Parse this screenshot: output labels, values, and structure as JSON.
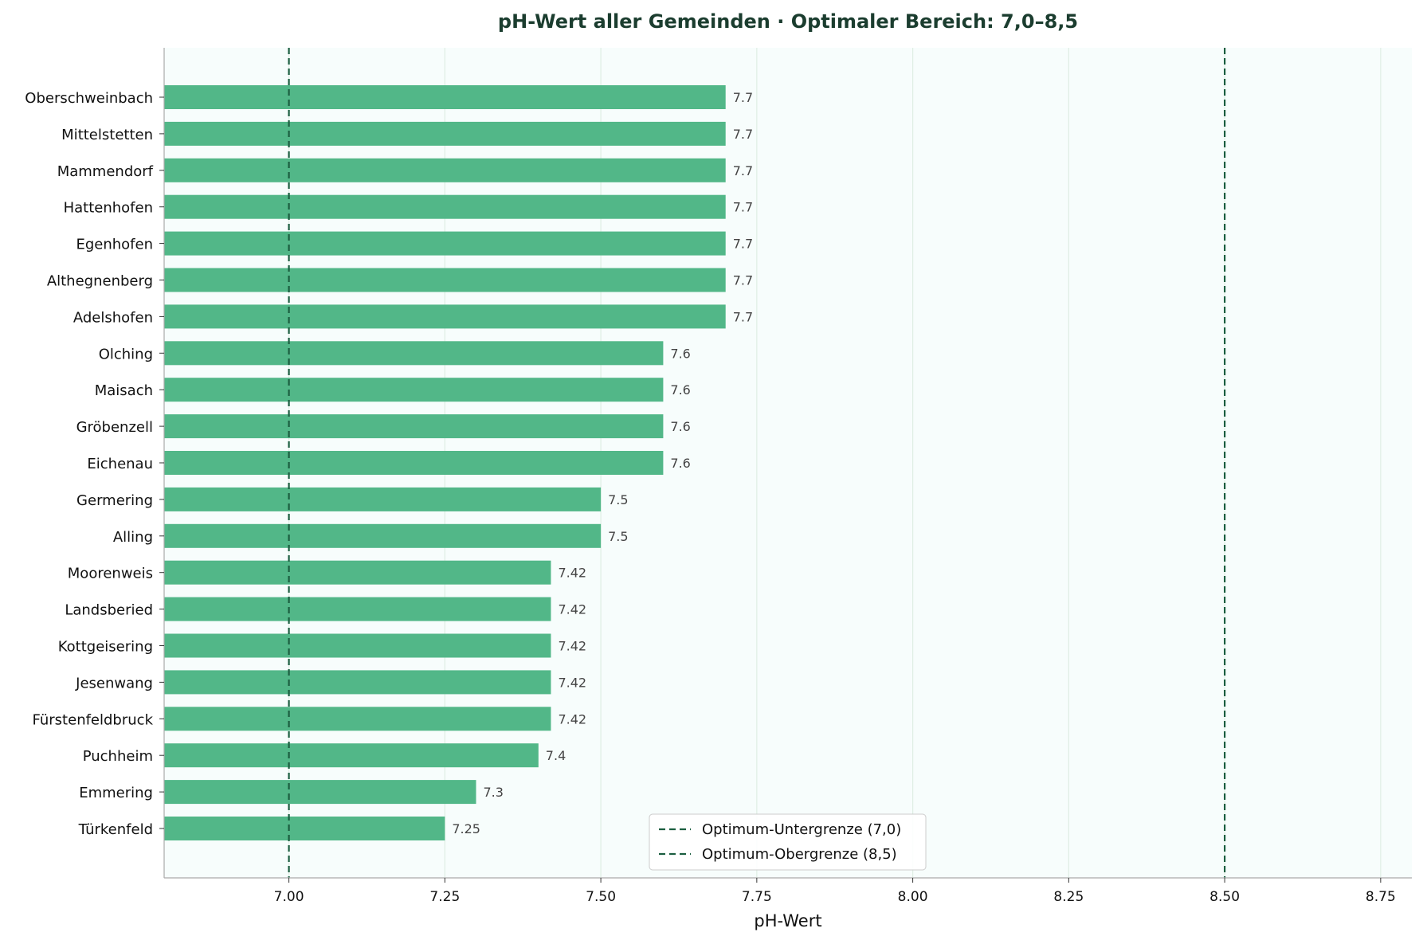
{
  "chart_data": {
    "type": "bar",
    "orientation": "horizontal",
    "title": "pH-Wert aller Gemeinden · Optimaler Bereich: 7,0–8,5",
    "xlabel": "pH-Wert",
    "ylabel": "",
    "xlim": [
      6.8,
      8.8
    ],
    "xticks": [
      "7.00",
      "7.25",
      "7.50",
      "7.75",
      "8.00",
      "8.25",
      "8.50",
      "8.75"
    ],
    "grid": "vertical",
    "bar_color": "#52b788",
    "plot_background": "#f7fdfc",
    "reference_line_color": "#1b5e40",
    "categories": [
      "Oberschweinbach",
      "Mittelstetten",
      "Mammendorf",
      "Hattenhofen",
      "Egenhofen",
      "Althegnenberg",
      "Adelshofen",
      "Olching",
      "Maisach",
      "Gröbenzell",
      "Eichenau",
      "Germering",
      "Alling",
      "Moorenweis",
      "Landsberied",
      "Kottgeisering",
      "Jesenwang",
      "Fürstenfeldbruck",
      "Puchheim",
      "Emmering",
      "Türkenfeld"
    ],
    "values": [
      7.7,
      7.7,
      7.7,
      7.7,
      7.7,
      7.7,
      7.7,
      7.6,
      7.6,
      7.6,
      7.6,
      7.5,
      7.5,
      7.42,
      7.42,
      7.42,
      7.42,
      7.42,
      7.4,
      7.3,
      7.25
    ],
    "value_labels": [
      "7.7",
      "7.7",
      "7.7",
      "7.7",
      "7.7",
      "7.7",
      "7.7",
      "7.6",
      "7.6",
      "7.6",
      "7.6",
      "7.5",
      "7.5",
      "7.42",
      "7.42",
      "7.42",
      "7.42",
      "7.42",
      "7.4",
      "7.3",
      "7.25"
    ],
    "reference_lines": [
      {
        "name": "Optimum-Untergrenze (7,0)",
        "value": 7.0
      },
      {
        "name": "Optimum-Obergrenze (8,5)",
        "value": 8.5
      }
    ],
    "legend_position": "bottom-center"
  }
}
